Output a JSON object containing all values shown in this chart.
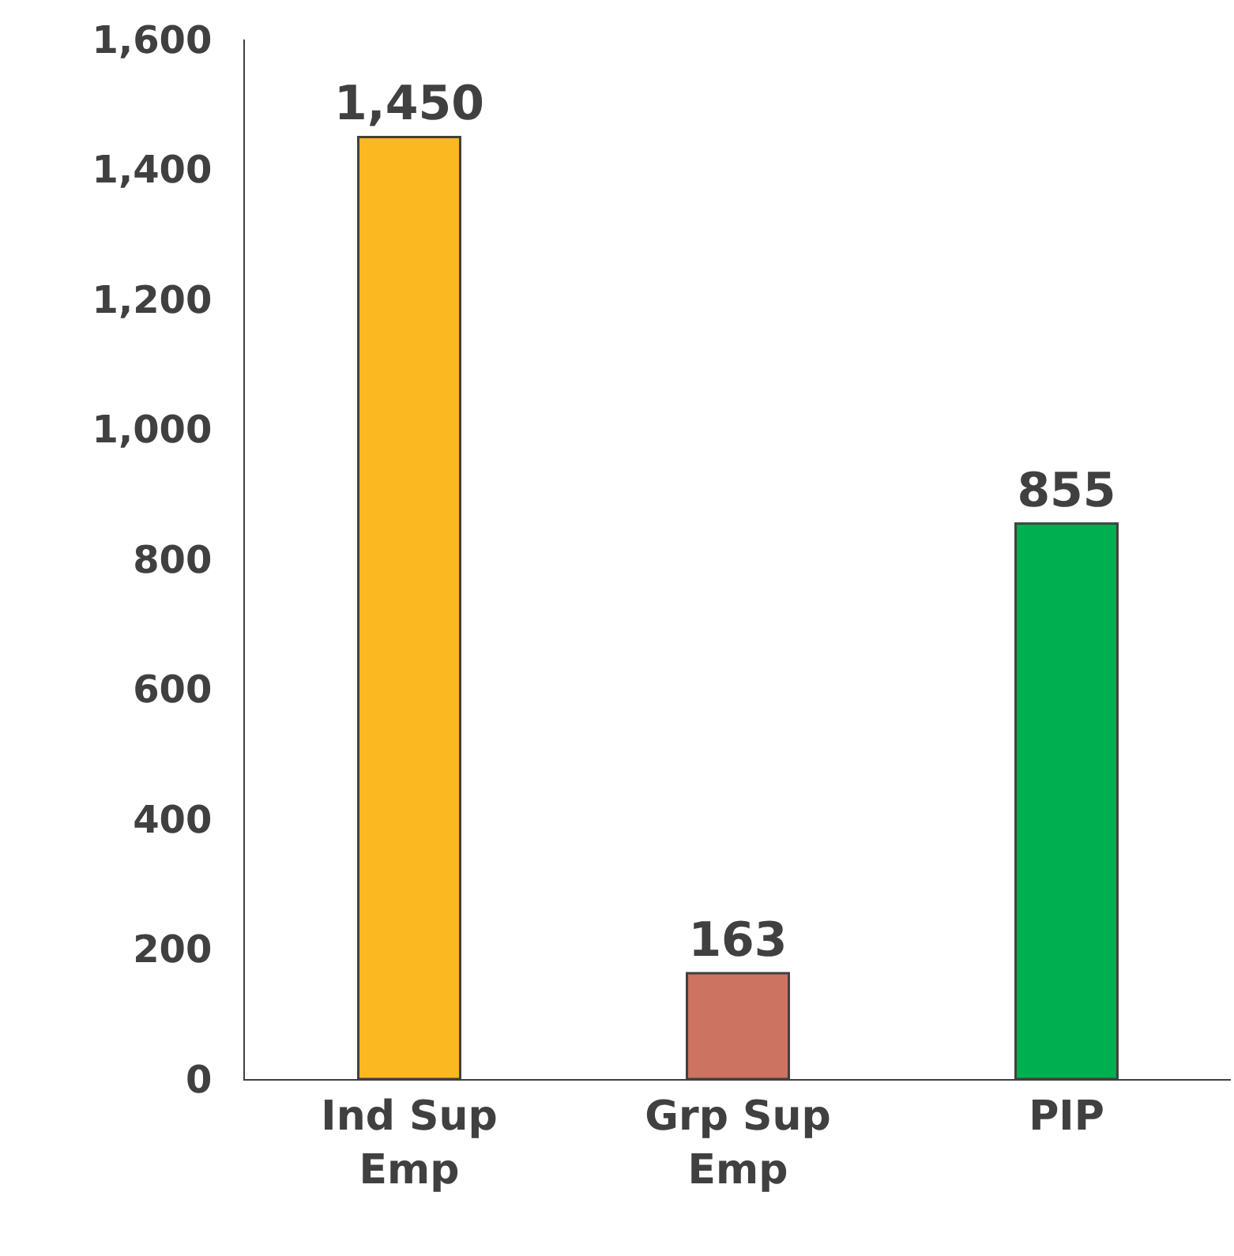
{
  "chart_data": {
    "type": "bar",
    "categories": [
      "Ind Sup Emp",
      "Grp Sup Emp",
      "PIP"
    ],
    "values": [
      1450,
      163,
      855
    ],
    "colors": [
      "#fbb820",
      "#cd7361",
      "#00b050"
    ],
    "ylim": [
      0,
      1600
    ],
    "yticks": [
      0,
      {
        "value": 200,
        "label": "200"
      },
      {
        "value": 400,
        "label": "400"
      },
      {
        "value": 600,
        "label": "600"
      },
      {
        "value": 800,
        "label": "800"
      },
      {
        "value": 1000,
        "label": "1,000"
      },
      {
        "value": 1200,
        "label": "1,200"
      },
      {
        "value": 1400,
        "label": "1,400"
      },
      {
        "value": 1600,
        "label": "1,600"
      }
    ],
    "value_labels": [
      "1,450",
      "163",
      "855"
    ]
  }
}
